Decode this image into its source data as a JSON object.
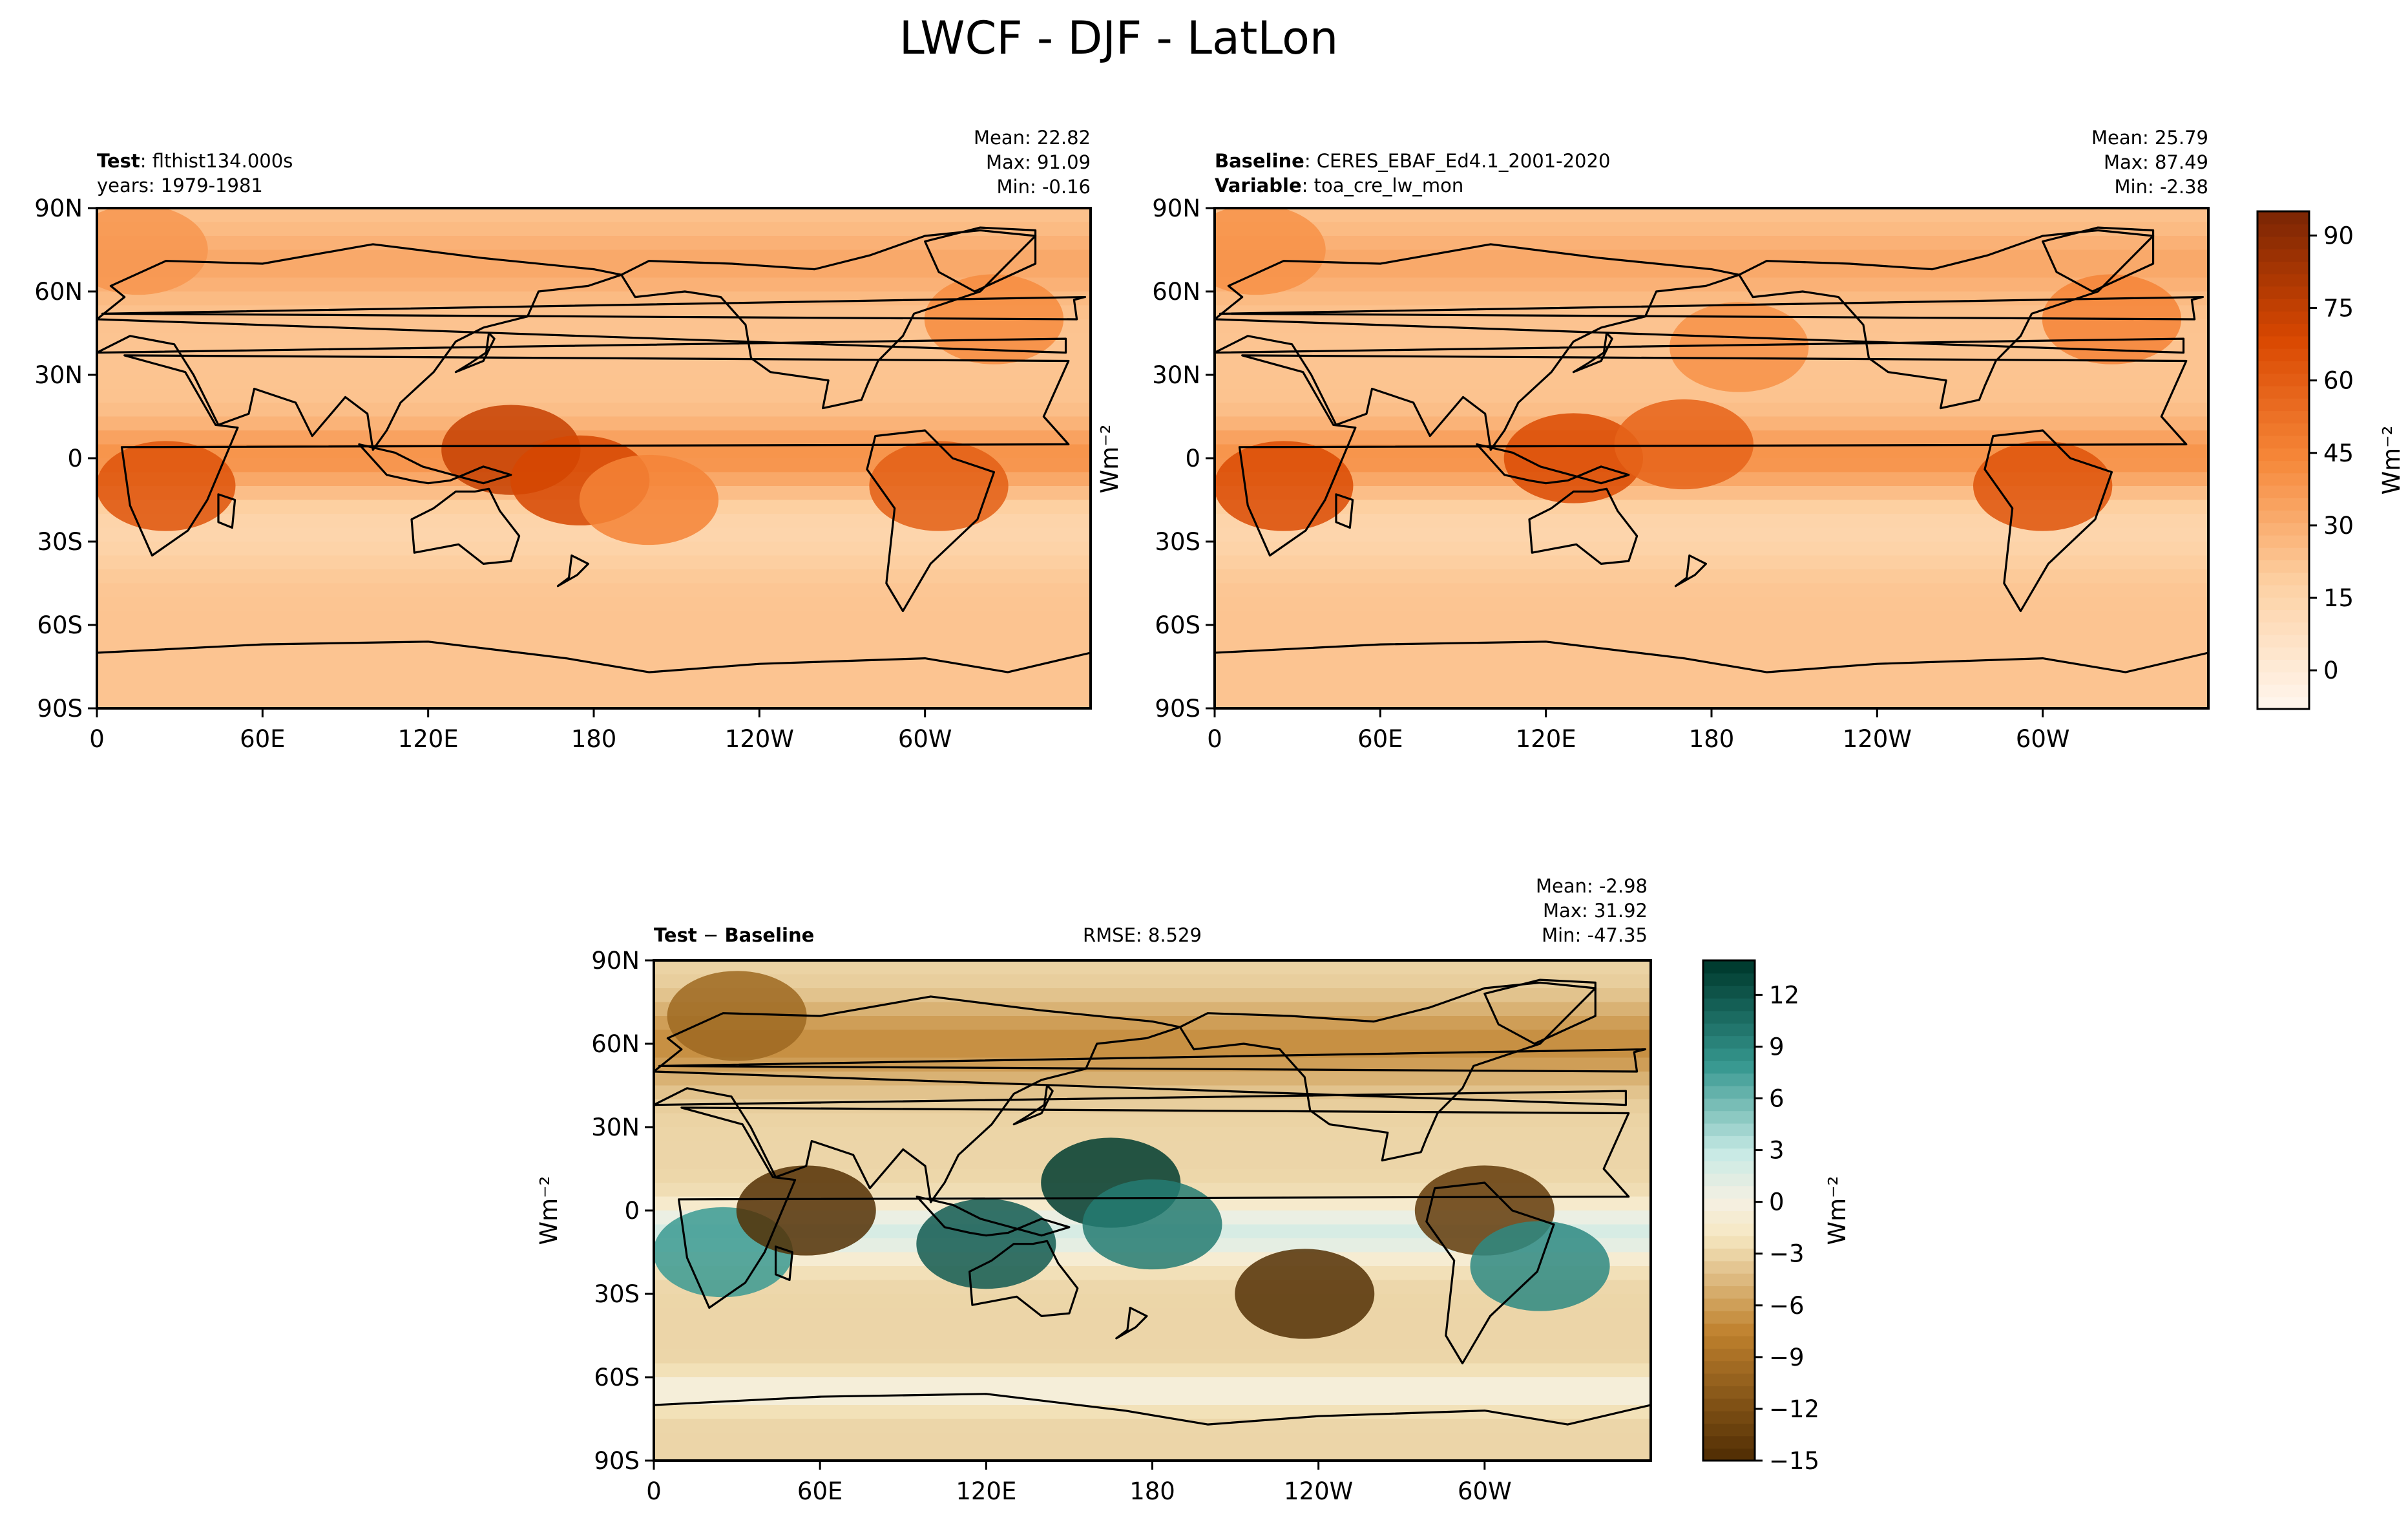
{
  "figure": {
    "title": "LWCF - DJF - LatLon"
  },
  "panels": {
    "test": {
      "label_bold": "Test",
      "label_text": ": flthist134.000s",
      "line2": "years: 1979-1981",
      "mean": "Mean: 22.82",
      "max": "Max: 91.09",
      "min": "Min: -0.16"
    },
    "baseline": {
      "label_bold": "Baseline",
      "label_text": ": CERES_EBAF_Ed4.1_2001-2020",
      "line2_bold": "Variable",
      "line2_text": ": toa_cre_lw_mon",
      "mean": "Mean: 25.79",
      "max": "Max: 87.49",
      "min": "Min: -2.38"
    },
    "diff": {
      "label_bold_a": "Test",
      "label_sep": " − ",
      "label_bold_b": "Baseline",
      "rmse": "RMSE: 8.529",
      "mean": "Mean: -2.98",
      "max": "Max: 31.92",
      "min": "Min: -47.35"
    }
  },
  "colors": {
    "orange_low": "#fff5eb",
    "orange_mid": "#f6883a",
    "orange_high": "#7f2704",
    "brbg_low": "#543005",
    "brbg_mid": "#f5f0e2",
    "brbg_high": "#003c30",
    "land_outline": "#000000"
  },
  "chart_data": [
    {
      "type": "heatmap",
      "name": "test",
      "title": "Test : flthist134.000s",
      "x_ticks": [
        "0",
        "60E",
        "120E",
        "180",
        "120W",
        "60W"
      ],
      "y_ticks": [
        "90N",
        "60N",
        "30N",
        "0",
        "30S",
        "60S",
        "90S"
      ],
      "xlim": [
        0,
        360
      ],
      "ylim": [
        -90,
        90
      ],
      "stats": {
        "mean": 22.82,
        "max": 91.09,
        "min": -0.16
      },
      "features": [
        {
          "lon": 150,
          "lat": 3,
          "value": 75
        },
        {
          "lon": 175,
          "lat": -8,
          "value": 70
        },
        {
          "lon": 25,
          "lat": -10,
          "value": 65
        },
        {
          "lon": 305,
          "lat": -10,
          "value": 60
        },
        {
          "lon": 325,
          "lat": 50,
          "value": 42
        },
        {
          "lon": 15,
          "lat": 75,
          "value": 38
        },
        {
          "lon": 200,
          "lat": -15,
          "value": 45
        }
      ]
    },
    {
      "type": "heatmap",
      "name": "baseline",
      "title": "Baseline : CERES_EBAF_Ed4.1_2001-2020",
      "x_ticks": [
        "0",
        "60E",
        "120E",
        "180",
        "120W",
        "60W"
      ],
      "y_ticks": [
        "90N",
        "60N",
        "30N",
        "0",
        "30S",
        "60S",
        "90S"
      ],
      "xlim": [
        0,
        360
      ],
      "ylim": [
        -90,
        90
      ],
      "stats": {
        "mean": 25.79,
        "max": 87.49,
        "min": -2.38
      },
      "features": [
        {
          "lon": 130,
          "lat": 0,
          "value": 68
        },
        {
          "lon": 170,
          "lat": 5,
          "value": 58
        },
        {
          "lon": 25,
          "lat": -10,
          "value": 68
        },
        {
          "lon": 300,
          "lat": -10,
          "value": 65
        },
        {
          "lon": 325,
          "lat": 50,
          "value": 45
        },
        {
          "lon": 15,
          "lat": 75,
          "value": 40
        },
        {
          "lon": 190,
          "lat": 40,
          "value": 40
        }
      ]
    },
    {
      "type": "heatmap",
      "name": "diff",
      "title": "Test − Baseline",
      "x_ticks": [
        "0",
        "60E",
        "120E",
        "180",
        "120W",
        "60W"
      ],
      "y_ticks": [
        "90N",
        "60N",
        "30N",
        "0",
        "30S",
        "60S",
        "90S"
      ],
      "xlim": [
        0,
        360
      ],
      "ylim": [
        -90,
        90
      ],
      "stats": {
        "mean": -2.98,
        "max": 31.92,
        "min": -47.35,
        "rmse": 8.529
      },
      "features": [
        {
          "lon": 165,
          "lat": 10,
          "value": 14
        },
        {
          "lon": 180,
          "lat": -5,
          "value": 10
        },
        {
          "lon": 120,
          "lat": -12,
          "value": 12
        },
        {
          "lon": 25,
          "lat": -15,
          "value": 8
        },
        {
          "lon": 300,
          "lat": 0,
          "value": -14
        },
        {
          "lon": 55,
          "lat": 0,
          "value": -15
        },
        {
          "lon": 235,
          "lat": -30,
          "value": -15
        },
        {
          "lon": 30,
          "lat": 70,
          "value": -10
        },
        {
          "lon": 320,
          "lat": -20,
          "value": 9
        }
      ]
    }
  ],
  "colorbars": {
    "top": {
      "label": "Wm⁻²",
      "range": [
        -8,
        95
      ],
      "ticks": [
        "0",
        "15",
        "30",
        "45",
        "60",
        "75",
        "90"
      ]
    },
    "diff": {
      "label": "Wm⁻²",
      "range": [
        -15,
        14
      ],
      "ticks": [
        "−15",
        "−12",
        "−9",
        "−6",
        "−3",
        "0",
        "3",
        "6",
        "9",
        "12"
      ]
    }
  },
  "ylabels": {
    "baseline_side": "Wm⁻²",
    "diff_side": "Wm⁻²"
  }
}
